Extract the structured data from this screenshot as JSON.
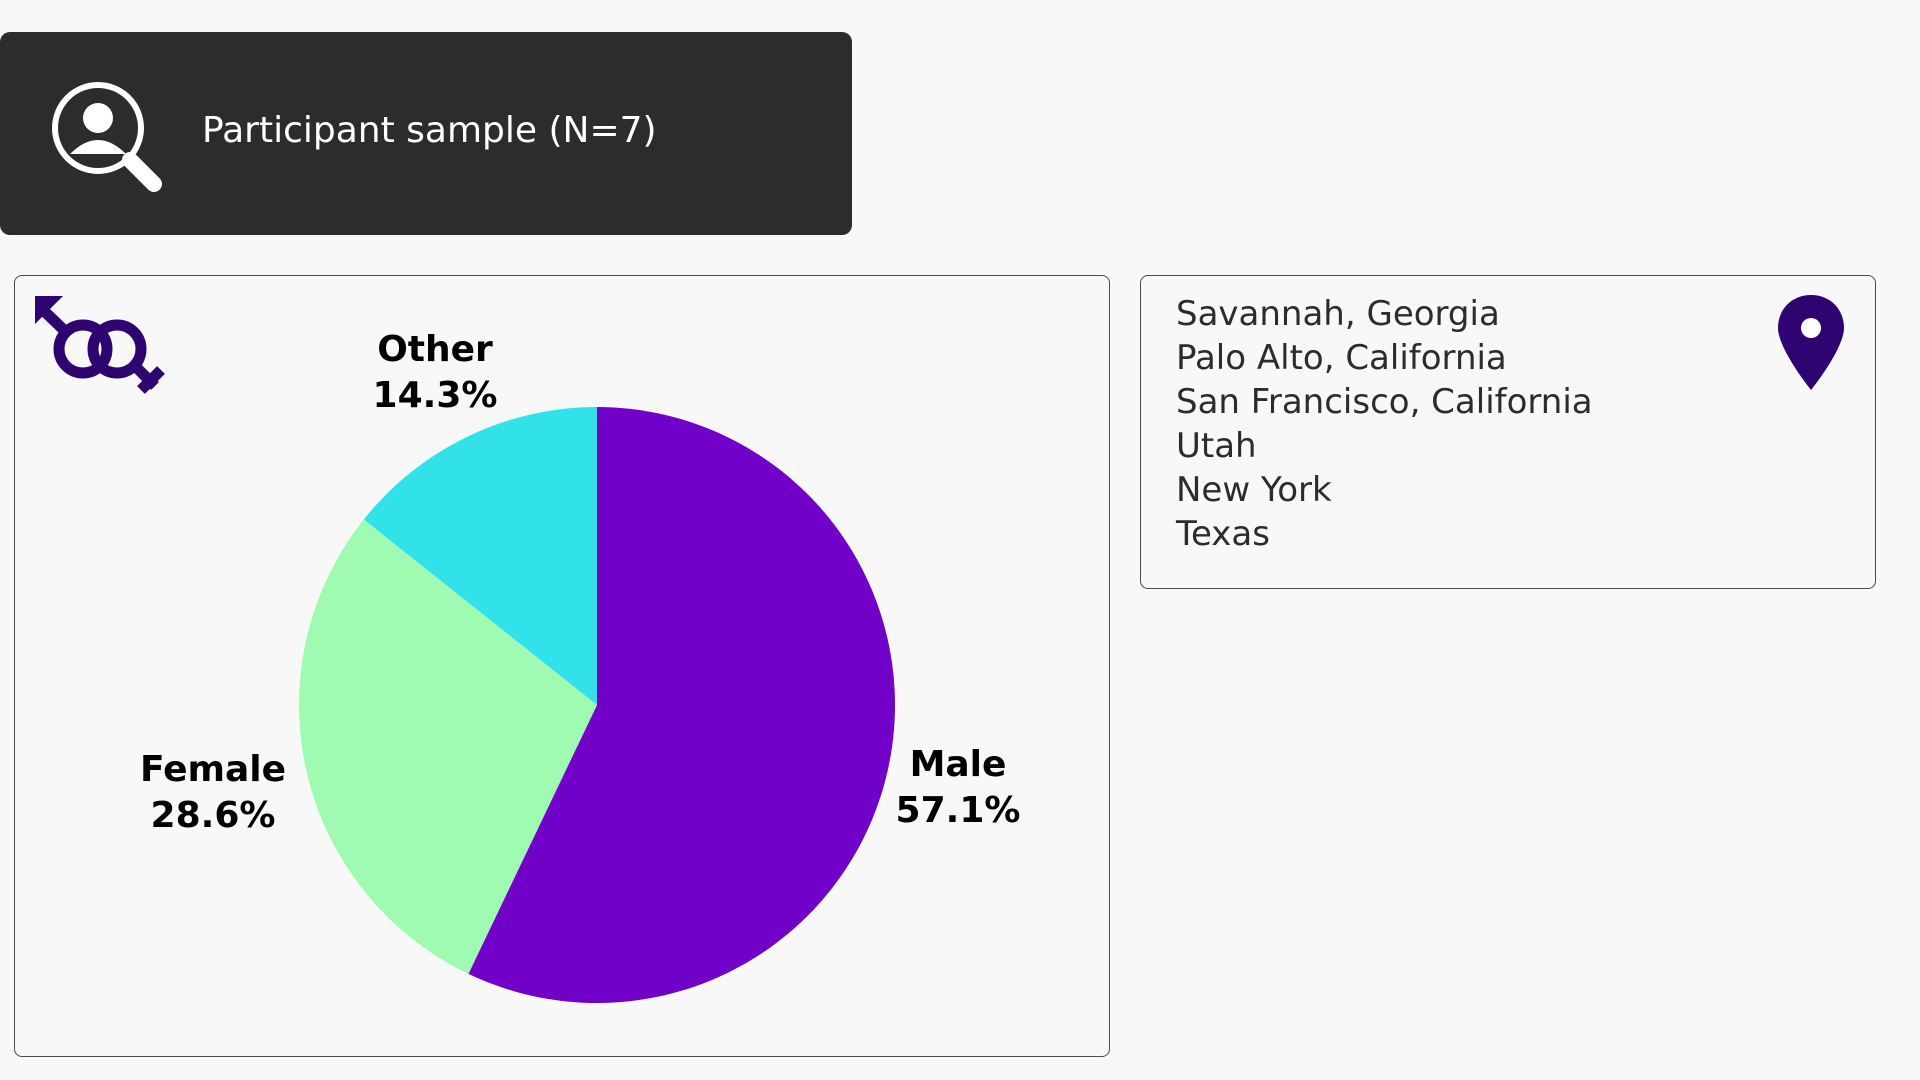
{
  "header": {
    "title": "Participant sample (N=7)",
    "icon": "user-search-icon"
  },
  "gender_panel": {
    "icon": "gender-symbols-icon"
  },
  "location_panel": {
    "icon": "map-pin-icon",
    "locations": [
      "Savannah, Georgia",
      "Palo Alto, California",
      "San Francisco, California",
      "Utah",
      "New York",
      "Texas"
    ]
  },
  "chart_data": {
    "type": "pie",
    "categories": [
      "Male",
      "Female",
      "Other"
    ],
    "values": [
      57.1,
      28.6,
      14.3
    ],
    "value_labels": [
      "57.1%",
      "28.6%",
      "14.3%"
    ],
    "colors": [
      "#7100c9",
      "#a0fbb2",
      "#31e2ea"
    ],
    "start": "12 o'clock",
    "direction": "clockwise",
    "legend": "none"
  },
  "colors": {
    "banner_bg": "#2b2c2e",
    "accent_purple": "#2e0470",
    "page_bg": "#f8f8f8"
  }
}
